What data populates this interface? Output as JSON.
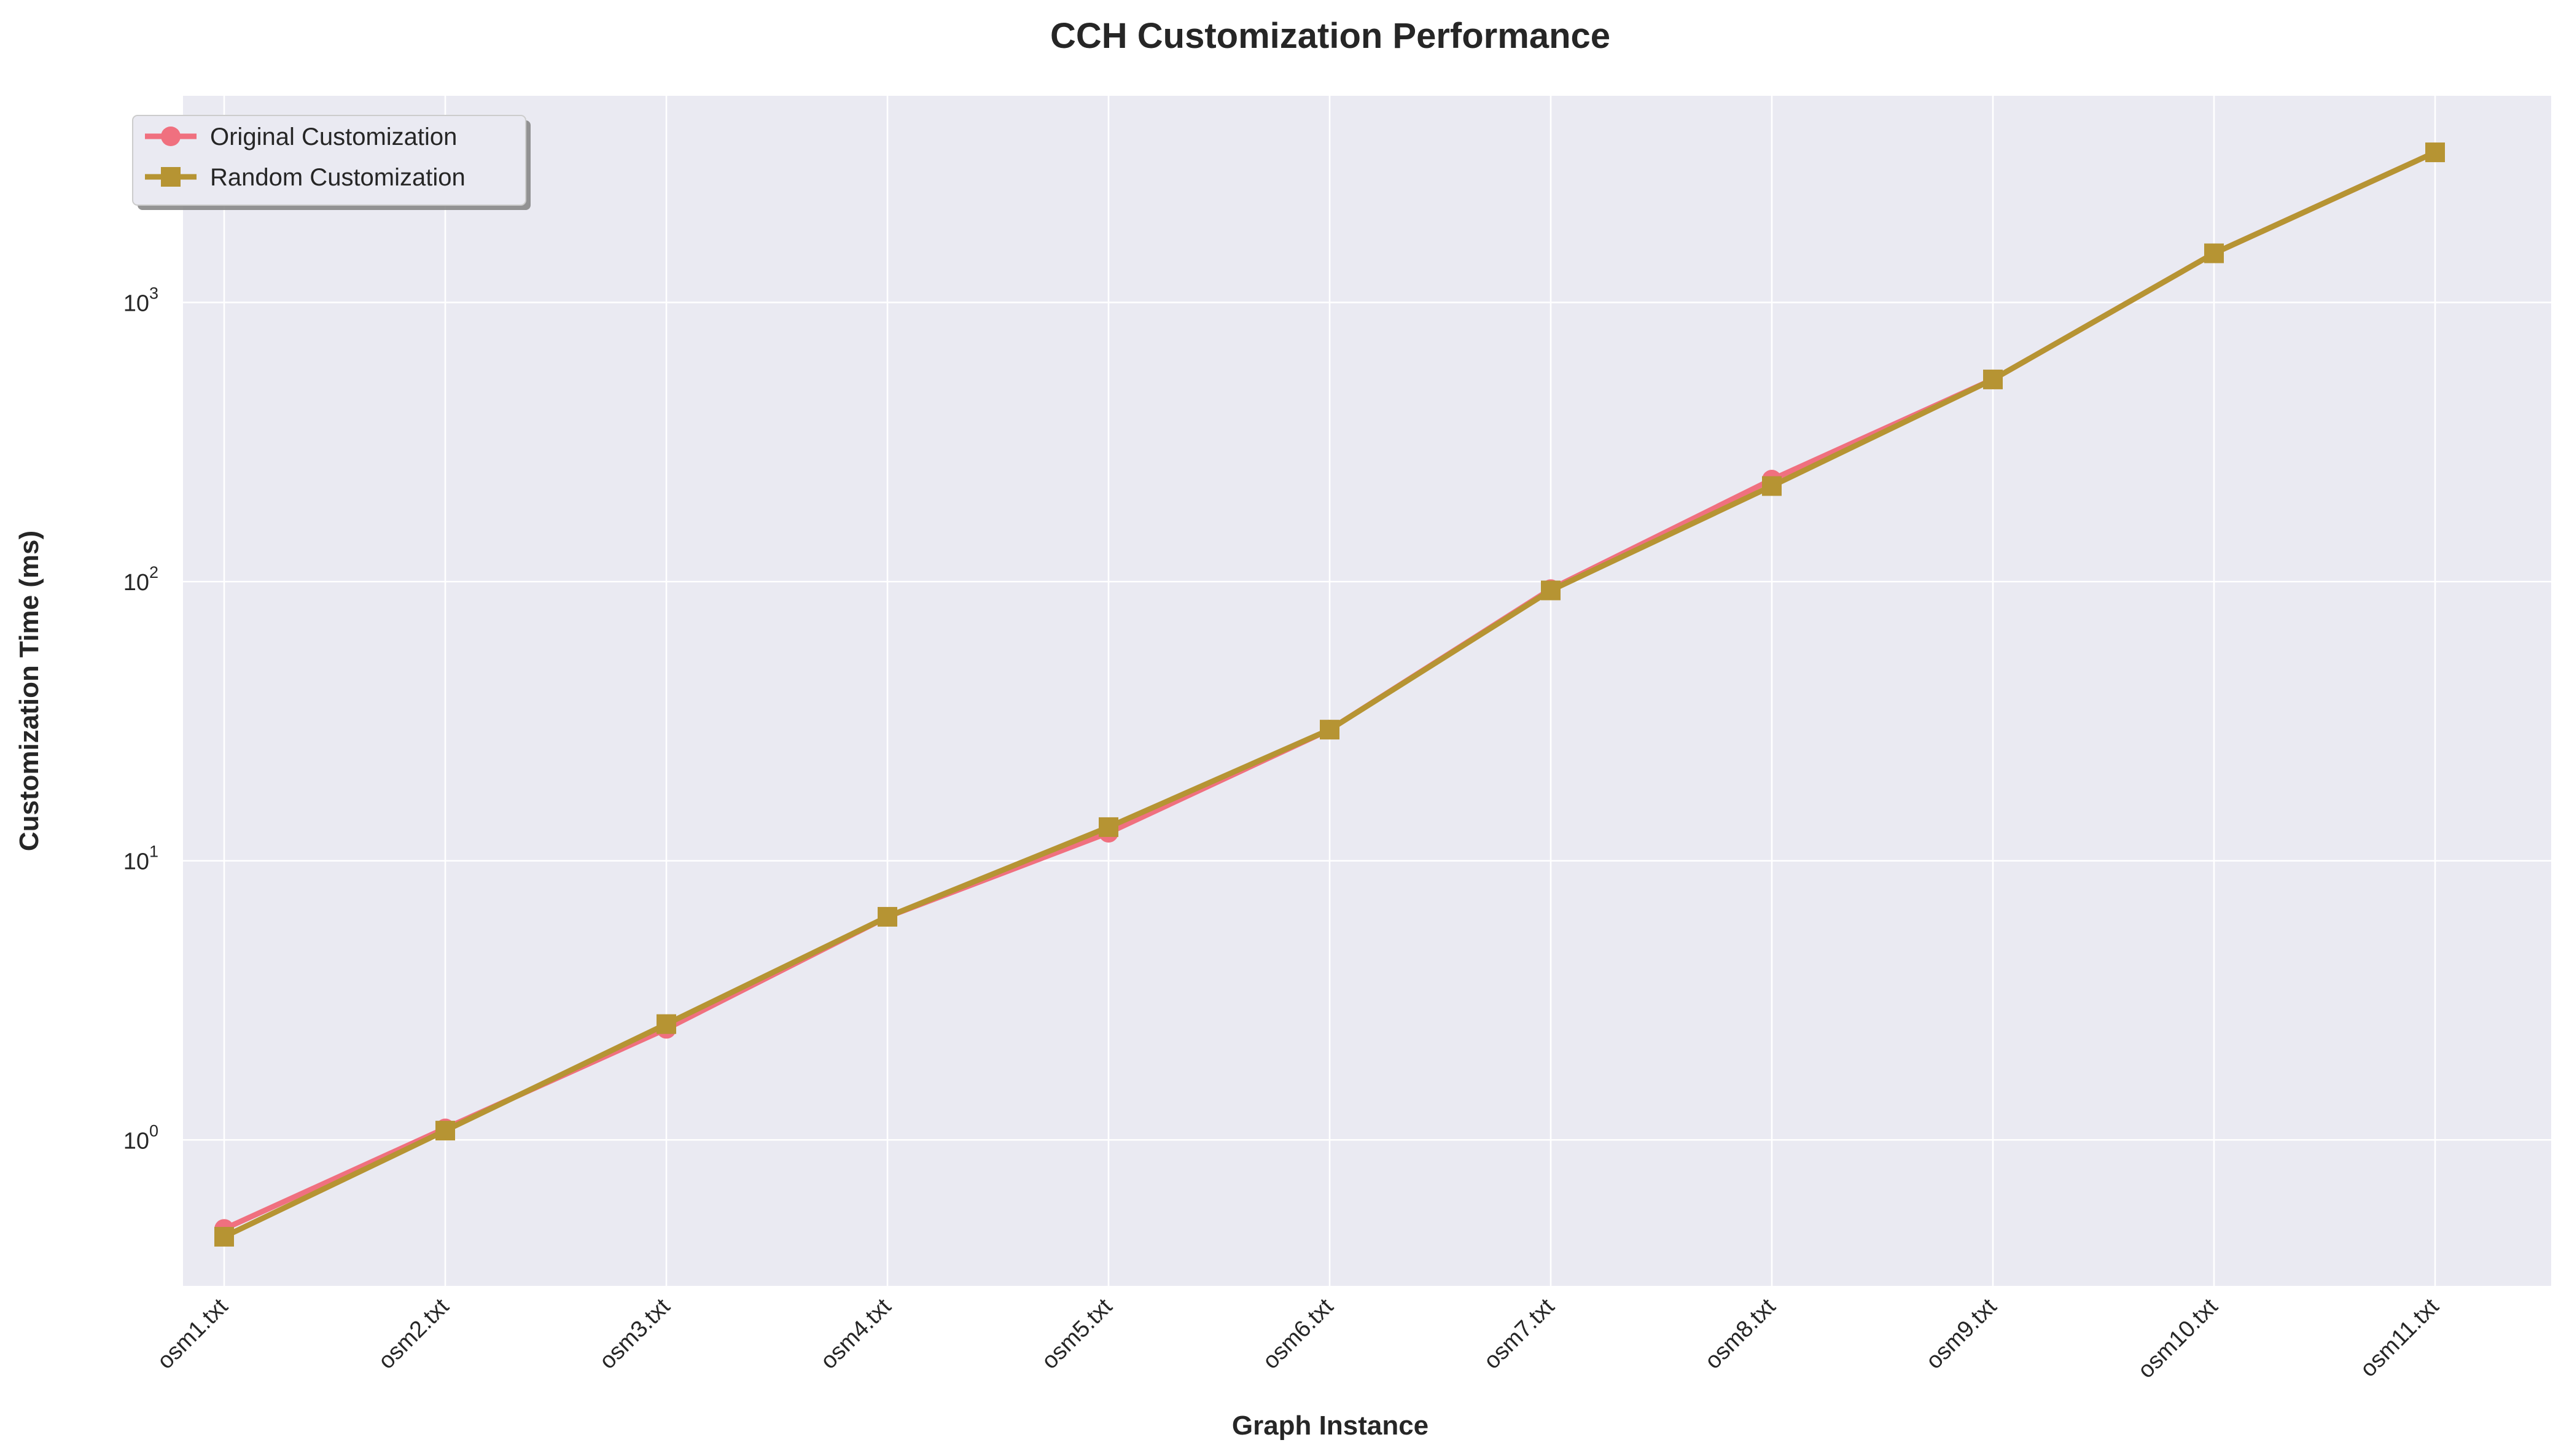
{
  "chart_data": {
    "type": "line",
    "title": "CCH Customization Performance",
    "xlabel": "Graph Instance",
    "ylabel": "Customization Time (ms)",
    "yscale": "log",
    "ylim": [
      0.3,
      5500
    ],
    "y_ticks": [
      {
        "value": 1,
        "base": "10",
        "exp": "0"
      },
      {
        "value": 10,
        "base": "10",
        "exp": "1"
      },
      {
        "value": 100,
        "base": "10",
        "exp": "2"
      },
      {
        "value": 1000,
        "base": "10",
        "exp": "3"
      }
    ],
    "categories": [
      "osm1.txt",
      "osm2.txt",
      "osm3.txt",
      "osm4.txt",
      "osm5.txt",
      "osm6.txt",
      "osm7.txt",
      "osm8.txt",
      "osm9.txt",
      "osm10.txt",
      "osm11.txt"
    ],
    "series": [
      {
        "name": "Original Customization",
        "color": "#f0707f",
        "marker": "circle",
        "values": [
          0.48,
          1.1,
          2.5,
          6.3,
          12.6,
          29.5,
          94,
          232,
          530,
          1500,
          3450
        ]
      },
      {
        "name": "Random Customization",
        "color": "#b69433",
        "marker": "square",
        "values": [
          0.45,
          1.08,
          2.6,
          6.3,
          13.2,
          29.5,
          93,
          220,
          530,
          1500,
          3450
        ]
      }
    ],
    "grid": true,
    "legend_position": "top-left",
    "background": "#eaeaf2"
  }
}
